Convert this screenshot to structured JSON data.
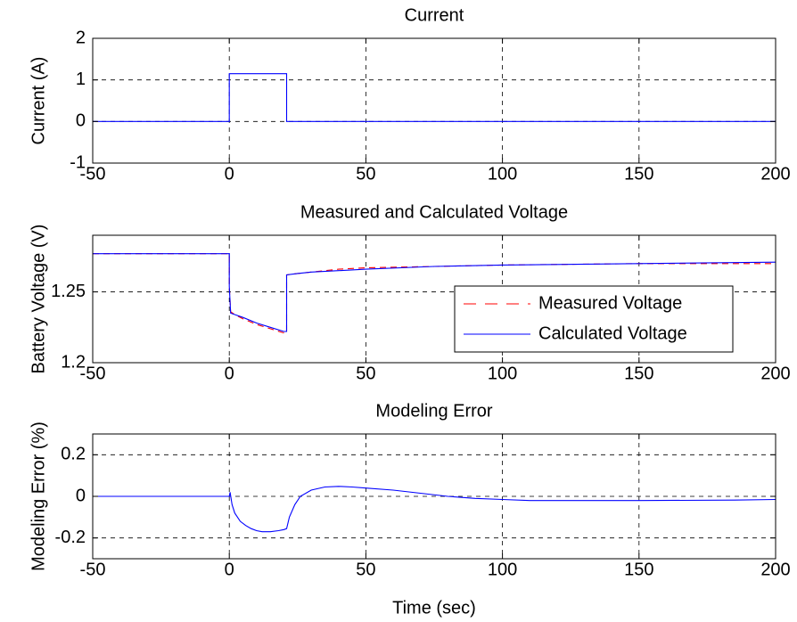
{
  "figure": {
    "background": "#ffffff"
  },
  "chart_data": [
    {
      "type": "line",
      "title": "Current",
      "xlabel": "",
      "ylabel": "Current (A)",
      "xlim": [
        -50,
        200
      ],
      "ylim": [
        -1,
        2
      ],
      "xticks": [
        -50,
        0,
        50,
        100,
        150,
        200
      ],
      "yticks": [
        -1,
        0,
        1,
        2
      ],
      "xtick_labels": [
        "-50",
        "0",
        "50",
        "100",
        "150",
        "200"
      ],
      "ytick_labels": [
        "-1",
        "0",
        "1",
        "2"
      ],
      "grid": true,
      "series": [
        {
          "color": "#0000ff",
          "style": "solid",
          "x": [
            -50,
            0,
            0,
            21,
            21,
            200
          ],
          "y": [
            0,
            0,
            1.15,
            1.15,
            0,
            0
          ]
        }
      ]
    },
    {
      "type": "line",
      "title": "Measured and Calculated Voltage",
      "xlabel": "",
      "ylabel": "Battery Voltage (V)",
      "xlim": [
        -50,
        200
      ],
      "ylim": [
        1.2,
        1.29
      ],
      "xticks": [
        -50,
        0,
        50,
        100,
        150,
        200
      ],
      "yticks": [
        1.2,
        1.25
      ],
      "xtick_labels": [
        "-50",
        "0",
        "50",
        "100",
        "150",
        "200"
      ],
      "ytick_labels": [
        "1.2",
        "1.25"
      ],
      "grid": true,
      "legend": {
        "position": "center-right",
        "entries": [
          "Measured Voltage",
          "Calculated Voltage"
        ]
      },
      "series": [
        {
          "name": "Measured Voltage",
          "color": "#ff0000",
          "style": "dashed",
          "x": [
            -50,
            0,
            0,
            0.5,
            2,
            5,
            10,
            15,
            20,
            21,
            21,
            25,
            30,
            40,
            50,
            75,
            100,
            150,
            200
          ],
          "y": [
            1.277,
            1.277,
            1.254,
            1.236,
            1.234,
            1.231,
            1.227,
            1.224,
            1.221,
            1.221,
            1.262,
            1.263,
            1.264,
            1.266,
            1.267,
            1.268,
            1.269,
            1.27,
            1.27
          ]
        },
        {
          "name": "Calculated Voltage",
          "color": "#0000ff",
          "style": "solid",
          "x": [
            -50,
            0,
            0,
            0.5,
            2,
            5,
            10,
            15,
            20,
            21,
            21,
            25,
            30,
            40,
            50,
            75,
            100,
            150,
            200
          ],
          "y": [
            1.277,
            1.277,
            1.254,
            1.235,
            1.234,
            1.232,
            1.228,
            1.225,
            1.222,
            1.222,
            1.262,
            1.263,
            1.264,
            1.265,
            1.266,
            1.268,
            1.269,
            1.27,
            1.271
          ]
        }
      ]
    },
    {
      "type": "line",
      "title": "Modeling Error",
      "xlabel": "Time (sec)",
      "ylabel": "Modeling Error (%)",
      "xlim": [
        -50,
        200
      ],
      "ylim": [
        -0.3,
        0.3
      ],
      "xticks": [
        -50,
        0,
        50,
        100,
        150,
        200
      ],
      "yticks": [
        -0.2,
        0,
        0.2
      ],
      "xtick_labels": [
        "-50",
        "0",
        "50",
        "100",
        "150",
        "200"
      ],
      "ytick_labels": [
        "-0.2",
        "0",
        "0.2"
      ],
      "grid": true,
      "series": [
        {
          "color": "#0000ff",
          "style": "solid",
          "x": [
            -50,
            0,
            0.3,
            1,
            2,
            4,
            6,
            8,
            10,
            12,
            15,
            18,
            20,
            21,
            22,
            24,
            26,
            30,
            35,
            40,
            45,
            50,
            60,
            70,
            80,
            90,
            100,
            110,
            120,
            150,
            185,
            200
          ],
          "y": [
            0,
            0,
            0.02,
            -0.04,
            -0.08,
            -0.12,
            -0.14,
            -0.155,
            -0.165,
            -0.17,
            -0.17,
            -0.165,
            -0.16,
            -0.155,
            -0.1,
            -0.04,
            0.0,
            0.03,
            0.045,
            0.048,
            0.045,
            0.04,
            0.03,
            0.015,
            0.0,
            -0.01,
            -0.015,
            -0.02,
            -0.02,
            -0.02,
            -0.018,
            -0.015
          ]
        }
      ]
    }
  ]
}
